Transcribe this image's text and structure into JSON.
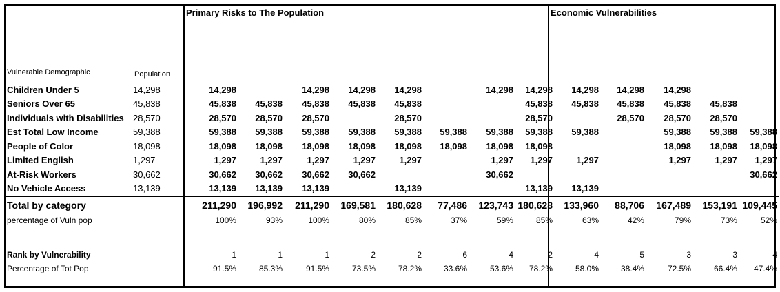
{
  "headers": {
    "group1": "Primary Risks to The Population",
    "group2": "Economic Vulnerabilities",
    "col_demographic": "Vulnerable Demographic",
    "col_population": "Population"
  },
  "rows": [
    {
      "label": "Children Under 5",
      "population": "14,298",
      "values": [
        "14,298",
        "",
        "14,298",
        "14,298",
        "14,298",
        "",
        "14,298",
        "14,298",
        "14,298",
        "14,298",
        "14,298",
        "",
        ""
      ]
    },
    {
      "label": "Seniors Over 65",
      "population": "45,838",
      "values": [
        "45,838",
        "45,838",
        "45,838",
        "45,838",
        "45,838",
        "",
        "",
        "45,838",
        "45,838",
        "45,838",
        "45,838",
        "45,838",
        ""
      ]
    },
    {
      "label": "Individuals with Disabilities",
      "population": "28,570",
      "values": [
        "28,570",
        "28,570",
        "28,570",
        "",
        "28,570",
        "",
        "",
        "28,570",
        "",
        "28,570",
        "28,570",
        "28,570",
        ""
      ]
    },
    {
      "label": "Est Total Low Income",
      "population": "59,388",
      "values": [
        "59,388",
        "59,388",
        "59,388",
        "59,388",
        "59,388",
        "59,388",
        "59,388",
        "59,388",
        "59,388",
        "",
        "59,388",
        "59,388",
        "59,388"
      ]
    },
    {
      "label": "People of Color",
      "population": "18,098",
      "values": [
        "18,098",
        "18,098",
        "18,098",
        "18,098",
        "18,098",
        "18,098",
        "18,098",
        "18,098",
        "",
        "",
        "18,098",
        "18,098",
        "18,098"
      ]
    },
    {
      "label": "Limited English",
      "population": "1,297",
      "values": [
        "1,297",
        "1,297",
        "1,297",
        "1,297",
        "1,297",
        "",
        "1,297",
        "1,297",
        "1,297",
        "",
        "1,297",
        "1,297",
        "1,297"
      ]
    },
    {
      "label": "At-Risk Workers",
      "population": "30,662",
      "values": [
        "30,662",
        "30,662",
        "30,662",
        "30,662",
        "",
        "",
        "30,662",
        "",
        "",
        "",
        "",
        "",
        "30,662"
      ]
    },
    {
      "label": "No Vehicle Access",
      "population": "13,139",
      "values": [
        "13,139",
        "13,139",
        "13,139",
        "",
        "13,139",
        "",
        "",
        "13,139",
        "13,139",
        "",
        "",
        "",
        ""
      ]
    }
  ],
  "total": {
    "label": "Total by category",
    "values": [
      "211,290",
      "196,992",
      "211,290",
      "169,581",
      "180,628",
      "77,486",
      "123,743",
      "180,628",
      "133,960",
      "88,706",
      "167,489",
      "153,191",
      "109,445"
    ]
  },
  "pct_vuln": {
    "label": "percentage of Vuln pop",
    "values": [
      "100%",
      "93%",
      "100%",
      "80%",
      "85%",
      "37%",
      "59%",
      "85%",
      "63%",
      "42%",
      "79%",
      "73%",
      "52%"
    ]
  },
  "rank": {
    "label": "Rank by Vulnerability",
    "values": [
      "1",
      "1",
      "1",
      "2",
      "2",
      "6",
      "4",
      "2",
      "4",
      "5",
      "3",
      "3",
      "4"
    ]
  },
  "pct_tot": {
    "label": "Percentage of Tot Pop",
    "values": [
      "91.5%",
      "85.3%",
      "91.5%",
      "73.5%",
      "78.2%",
      "33.6%",
      "53.6%",
      "78.2%",
      "58.0%",
      "38.4%",
      "72.5%",
      "66.4%",
      "47.4%"
    ]
  }
}
